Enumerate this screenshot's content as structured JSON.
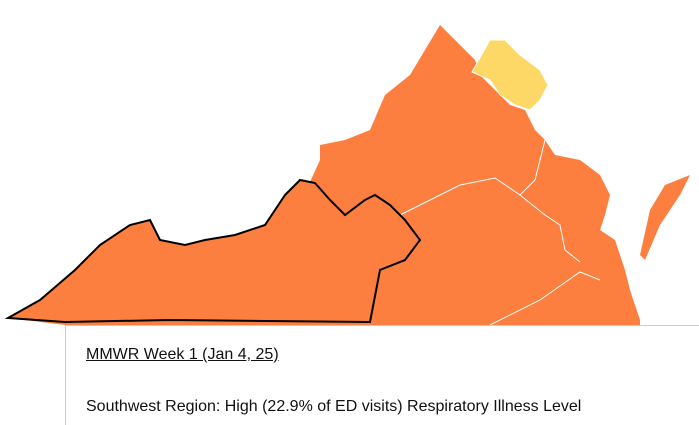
{
  "tooltip": {
    "title": "MMWR Week 1 (Jan 4, 25)",
    "body": "Southwest Region: High (22.9% of ED visits) Respiratory Illness Level"
  }
}
